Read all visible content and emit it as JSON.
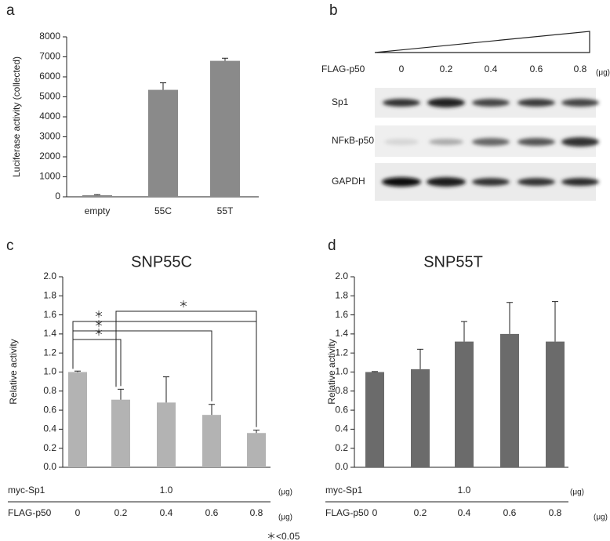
{
  "chart_data": [
    {
      "type": "bar",
      "panel": "a",
      "y_label": "Luciferase activity (collected)",
      "categories": [
        "empty",
        "55C",
        "55T"
      ],
      "values": [
        80,
        5350,
        6800
      ],
      "errors": [
        30,
        350,
        130
      ],
      "color": "#8a8a8a",
      "ylim": [
        0,
        8000
      ],
      "yticks": [
        0,
        1000,
        2000,
        3000,
        4000,
        5000,
        6000,
        7000,
        8000
      ]
    },
    {
      "type": "bar",
      "panel": "c",
      "title": "SNP55C",
      "y_label": "Relative activity",
      "categories": [
        "0",
        "0.2",
        "0.4",
        "0.6",
        "0.8"
      ],
      "values": [
        1.0,
        0.71,
        0.68,
        0.55,
        0.36
      ],
      "errors": [
        0.01,
        0.11,
        0.27,
        0.11,
        0.03
      ],
      "color": "#b3b3b3",
      "ylim": [
        0,
        2
      ],
      "yticks": [
        {
          "value": 0,
          "label": "0.0"
        },
        0.2,
        0.4,
        0.6,
        0.8,
        {
          "value": 1,
          "label": "1.0"
        },
        1.2,
        1.4,
        1.6,
        1.8,
        {
          "value": 2,
          "label": "2.0"
        }
      ],
      "myc_label": "myc-Sp1",
      "myc_value": "1.0",
      "myc_unit": "(μg)",
      "x_label": "FLAG-p50",
      "x_unit": "(μg)",
      "annotations": [
        "＊",
        "＊",
        "＊",
        "＊"
      ],
      "note": "＊<0.05"
    },
    {
      "type": "bar",
      "panel": "d",
      "title": "SNP55T",
      "y_label": "Relative activity",
      "categories": [
        "0",
        "0.2",
        "0.4",
        "0.6",
        "0.8"
      ],
      "values": [
        1.0,
        1.03,
        1.32,
        1.4,
        1.32
      ],
      "errors": [
        0.005,
        0.21,
        0.21,
        0.33,
        0.42
      ],
      "color": "#6b6b6b",
      "ylim": [
        0,
        2
      ],
      "yticks": [
        {
          "value": 0,
          "label": "0.0"
        },
        0.2,
        0.4,
        0.6,
        0.8,
        {
          "value": 1,
          "label": "1.0"
        },
        1.2,
        1.4,
        1.6,
        1.8,
        {
          "value": 2,
          "label": "2.0"
        }
      ],
      "myc_label": "myc-Sp1",
      "myc_value": "1.0",
      "myc_unit": "(μg)",
      "x_label": "FLAG-p50",
      "x_unit": "(μg)"
    }
  ],
  "blot": {
    "panel": "b",
    "label": "FLAG-p50",
    "amounts": [
      "0",
      "0.2",
      "0.4",
      "0.6",
      "0.8"
    ],
    "unit": "(μg)",
    "rows": [
      "Sp1",
      "NFκB-p50",
      "GAPDH"
    ]
  }
}
